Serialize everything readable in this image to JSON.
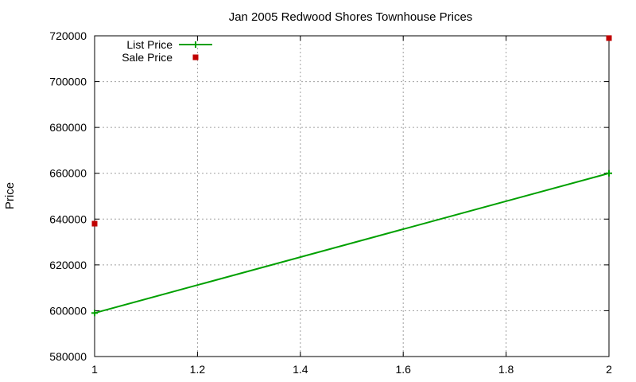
{
  "chart_data": {
    "type": "line",
    "title": "Jan 2005 Redwood Shores Townhouse Prices",
    "xlabel": "",
    "ylabel": "Price",
    "xlim": [
      1,
      2
    ],
    "ylim": [
      580000,
      720000
    ],
    "x_ticks": [
      "1",
      "1.2",
      "1.4",
      "1.6",
      "1.8",
      "2"
    ],
    "y_ticks": [
      "580000",
      "600000",
      "620000",
      "640000",
      "660000",
      "680000",
      "700000",
      "720000"
    ],
    "grid": true,
    "legend_position": "top-left",
    "series": [
      {
        "name": "List Price",
        "style": "line+points",
        "marker": "plus",
        "color": "#00a000",
        "points": [
          [
            1,
            599000
          ],
          [
            2,
            660000
          ]
        ]
      },
      {
        "name": "Sale Price",
        "style": "points",
        "marker": "square",
        "color": "#c00000",
        "points": [
          [
            1,
            638000
          ],
          [
            2,
            719000
          ]
        ]
      }
    ]
  }
}
